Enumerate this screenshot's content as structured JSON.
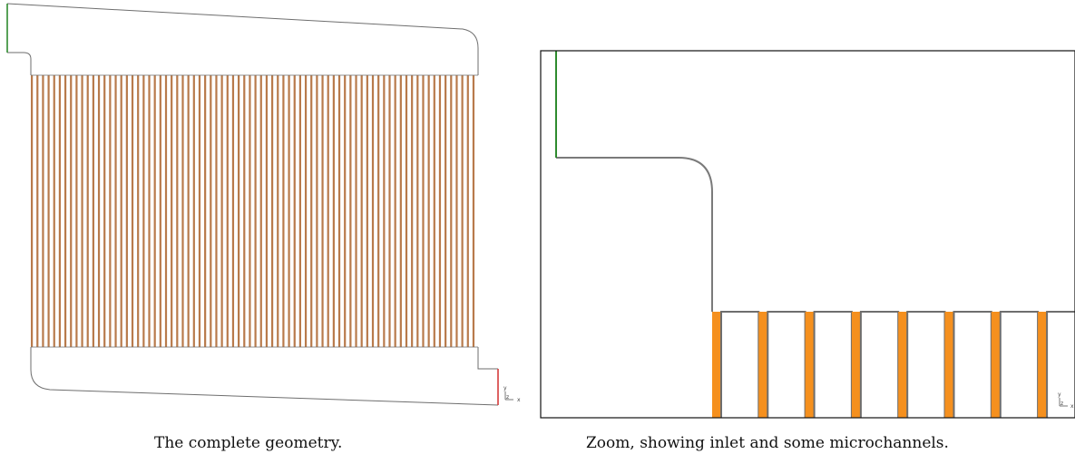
{
  "figure": {
    "panels": [
      {
        "id": "complete",
        "caption": "The complete geometry.",
        "channel_count": 80,
        "channel_color": "#b87a4b",
        "axes": {
          "x": "x",
          "y": "y",
          "z": "z"
        }
      },
      {
        "id": "zoom",
        "caption": "Zoom, showing inlet and some microchannels.",
        "channel_color": "#f5901e",
        "axes": {
          "x": "x",
          "y": "y",
          "z": "z"
        }
      }
    ],
    "colors": {
      "outline": "#6e6e6e",
      "inlet": "#2e8b2e",
      "outlet": "#d63a3a",
      "frame": "#111111"
    }
  }
}
